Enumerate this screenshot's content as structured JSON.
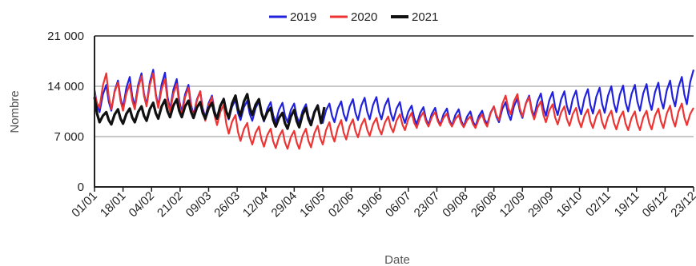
{
  "chart_data": {
    "type": "line",
    "title": "",
    "xlabel": "Date",
    "ylabel": "Nombre",
    "x_domain_days": [
      1,
      358
    ],
    "ylim": [
      0,
      21000
    ],
    "y_ticks": [
      {
        "value": 0,
        "label": "0"
      },
      {
        "value": 7000,
        "label": "7 000"
      },
      {
        "value": 14000,
        "label": "14 000"
      },
      {
        "value": 21000,
        "label": "21 000"
      }
    ],
    "gridlines": [
      7000,
      14000
    ],
    "x_ticks": [
      "01/01",
      "18/01",
      "04/02",
      "21/02",
      "09/03",
      "26/03",
      "12/04",
      "29/04",
      "16/05",
      "02/06",
      "19/06",
      "06/07",
      "23/07",
      "09/08",
      "26/08",
      "12/09",
      "29/09",
      "16/10",
      "02/11",
      "19/11",
      "06/12",
      "23/12"
    ],
    "x_tick_step_days": 17,
    "legend": {
      "placement": "top-center"
    },
    "series": [
      {
        "name": "2019",
        "color": "#2020dd",
        "weekly_peaks": [
          [
            1,
            13500
          ],
          [
            8,
            14200
          ],
          [
            15,
            14800
          ],
          [
            22,
            15300
          ],
          [
            29,
            15800
          ],
          [
            36,
            16300
          ],
          [
            43,
            15900
          ],
          [
            50,
            15000
          ],
          [
            57,
            14200
          ],
          [
            64,
            13300
          ],
          [
            71,
            12700
          ],
          [
            78,
            12300
          ],
          [
            85,
            12100
          ],
          [
            92,
            12000
          ],
          [
            99,
            11900
          ],
          [
            106,
            11800
          ],
          [
            113,
            11700
          ],
          [
            120,
            11600
          ],
          [
            127,
            11500
          ],
          [
            134,
            11400
          ],
          [
            141,
            11600
          ],
          [
            148,
            11900
          ],
          [
            155,
            12200
          ],
          [
            162,
            12400
          ],
          [
            169,
            12500
          ],
          [
            176,
            12300
          ],
          [
            183,
            11800
          ],
          [
            190,
            11300
          ],
          [
            197,
            11100
          ],
          [
            204,
            11000
          ],
          [
            211,
            10900
          ],
          [
            218,
            10800
          ],
          [
            225,
            10500
          ],
          [
            232,
            10600
          ],
          [
            239,
            11200
          ],
          [
            246,
            11800
          ],
          [
            253,
            12300
          ],
          [
            260,
            12700
          ],
          [
            267,
            13000
          ],
          [
            274,
            13200
          ],
          [
            281,
            13300
          ],
          [
            288,
            13400
          ],
          [
            295,
            13600
          ],
          [
            302,
            13800
          ],
          [
            309,
            14000
          ],
          [
            316,
            14100
          ],
          [
            323,
            14200
          ],
          [
            330,
            14300
          ],
          [
            337,
            14500
          ],
          [
            344,
            14800
          ],
          [
            351,
            15300
          ],
          [
            358,
            16300
          ]
        ],
        "weekly_troughs": [
          [
            4,
            10400
          ],
          [
            11,
            10600
          ],
          [
            18,
            11000
          ],
          [
            25,
            11200
          ],
          [
            32,
            11400
          ],
          [
            39,
            11200
          ],
          [
            46,
            10800
          ],
          [
            53,
            10400
          ],
          [
            60,
            10000
          ],
          [
            67,
            9700
          ],
          [
            74,
            9500
          ],
          [
            81,
            9400
          ],
          [
            88,
            9300
          ],
          [
            95,
            9200
          ],
          [
            102,
            9100
          ],
          [
            109,
            9000
          ],
          [
            116,
            9000
          ],
          [
            123,
            8900
          ],
          [
            130,
            8900
          ],
          [
            137,
            8900
          ],
          [
            144,
            9000
          ],
          [
            151,
            9200
          ],
          [
            158,
            9300
          ],
          [
            165,
            9400
          ],
          [
            172,
            9400
          ],
          [
            179,
            9200
          ],
          [
            186,
            8900
          ],
          [
            193,
            8700
          ],
          [
            200,
            8600
          ],
          [
            207,
            8600
          ],
          [
            214,
            8500
          ],
          [
            221,
            8400
          ],
          [
            228,
            8400
          ],
          [
            235,
            8700
          ],
          [
            242,
            9000
          ],
          [
            249,
            9300
          ],
          [
            256,
            9600
          ],
          [
            263,
            9800
          ],
          [
            270,
            9900
          ],
          [
            277,
            10000
          ],
          [
            284,
            10100
          ],
          [
            291,
            10100
          ],
          [
            298,
            10200
          ],
          [
            305,
            10300
          ],
          [
            312,
            10400
          ],
          [
            319,
            10500
          ],
          [
            326,
            10600
          ],
          [
            333,
            10700
          ],
          [
            340,
            10900
          ],
          [
            347,
            11200
          ],
          [
            354,
            11500
          ]
        ]
      },
      {
        "name": "2020",
        "color": "#ee3333",
        "weekly_peaks": [
          [
            1,
            13000
          ],
          [
            8,
            15800
          ],
          [
            15,
            14500
          ],
          [
            22,
            14300
          ],
          [
            29,
            15400
          ],
          [
            36,
            15800
          ],
          [
            43,
            15000
          ],
          [
            50,
            14300
          ],
          [
            57,
            13800
          ],
          [
            64,
            13300
          ],
          [
            71,
            12500
          ],
          [
            78,
            11400
          ],
          [
            85,
            10000
          ],
          [
            92,
            8900
          ],
          [
            99,
            8400
          ],
          [
            106,
            8100
          ],
          [
            113,
            7900
          ],
          [
            120,
            7800
          ],
          [
            127,
            8100
          ],
          [
            134,
            8500
          ],
          [
            141,
            9000
          ],
          [
            148,
            9300
          ],
          [
            155,
            9400
          ],
          [
            162,
            9500
          ],
          [
            169,
            9600
          ],
          [
            176,
            9800
          ],
          [
            183,
            10100
          ],
          [
            190,
            10300
          ],
          [
            197,
            10400
          ],
          [
            204,
            10400
          ],
          [
            211,
            10200
          ],
          [
            218,
            10000
          ],
          [
            225,
            9800
          ],
          [
            232,
            10100
          ],
          [
            239,
            11200
          ],
          [
            246,
            12700
          ],
          [
            253,
            12900
          ],
          [
            260,
            12500
          ],
          [
            267,
            11900
          ],
          [
            274,
            11500
          ],
          [
            281,
            11200
          ],
          [
            288,
            11000
          ],
          [
            295,
            10800
          ],
          [
            302,
            10700
          ],
          [
            309,
            10600
          ],
          [
            316,
            10500
          ],
          [
            323,
            10500
          ],
          [
            330,
            10600
          ],
          [
            337,
            10900
          ],
          [
            344,
            11300
          ],
          [
            351,
            11600
          ],
          [
            358,
            11000
          ]
        ],
        "weekly_troughs": [
          [
            4,
            11000
          ],
          [
            11,
            10800
          ],
          [
            18,
            10600
          ],
          [
            25,
            10800
          ],
          [
            32,
            11200
          ],
          [
            39,
            11000
          ],
          [
            46,
            10500
          ],
          [
            53,
            10000
          ],
          [
            60,
            9600
          ],
          [
            67,
            9200
          ],
          [
            74,
            8600
          ],
          [
            81,
            7400
          ],
          [
            88,
            6400
          ],
          [
            95,
            5900
          ],
          [
            102,
            5600
          ],
          [
            109,
            5400
          ],
          [
            116,
            5300
          ],
          [
            123,
            5300
          ],
          [
            130,
            5500
          ],
          [
            137,
            5900
          ],
          [
            144,
            6300
          ],
          [
            151,
            6600
          ],
          [
            158,
            6900
          ],
          [
            165,
            7100
          ],
          [
            172,
            7300
          ],
          [
            179,
            7600
          ],
          [
            186,
            7900
          ],
          [
            193,
            8200
          ],
          [
            200,
            8400
          ],
          [
            207,
            8500
          ],
          [
            214,
            8400
          ],
          [
            221,
            8300
          ],
          [
            228,
            8200
          ],
          [
            235,
            8400
          ],
          [
            242,
            9300
          ],
          [
            249,
            10100
          ],
          [
            256,
            9800
          ],
          [
            263,
            9400
          ],
          [
            270,
            9000
          ],
          [
            277,
            8700
          ],
          [
            284,
            8500
          ],
          [
            291,
            8300
          ],
          [
            298,
            8200
          ],
          [
            305,
            8100
          ],
          [
            312,
            8000
          ],
          [
            319,
            7900
          ],
          [
            326,
            7900
          ],
          [
            333,
            8000
          ],
          [
            340,
            8200
          ],
          [
            347,
            8400
          ],
          [
            354,
            8600
          ]
        ]
      },
      {
        "name": "2021",
        "color": "#111111",
        "weekly_peaks": [
          [
            1,
            12500
          ],
          [
            8,
            10400
          ],
          [
            15,
            10800
          ],
          [
            22,
            10900
          ],
          [
            29,
            11200
          ],
          [
            36,
            11700
          ],
          [
            43,
            12100
          ],
          [
            50,
            12200
          ],
          [
            57,
            12000
          ],
          [
            64,
            11800
          ],
          [
            71,
            11700
          ],
          [
            78,
            12200
          ],
          [
            85,
            12700
          ],
          [
            92,
            12900
          ],
          [
            99,
            12200
          ],
          [
            106,
            11000
          ],
          [
            113,
            10300
          ],
          [
            120,
            10700
          ],
          [
            127,
            11000
          ],
          [
            134,
            11300
          ],
          [
            138,
            11100
          ]
        ],
        "weekly_troughs": [
          [
            4,
            9000
          ],
          [
            11,
            8700
          ],
          [
            18,
            8800
          ],
          [
            25,
            9000
          ],
          [
            32,
            9200
          ],
          [
            39,
            9500
          ],
          [
            46,
            9700
          ],
          [
            53,
            9700
          ],
          [
            60,
            9600
          ],
          [
            67,
            9500
          ],
          [
            74,
            9500
          ],
          [
            81,
            9600
          ],
          [
            88,
            9900
          ],
          [
            95,
            10000
          ],
          [
            102,
            9300
          ],
          [
            109,
            8400
          ],
          [
            116,
            8100
          ],
          [
            123,
            8300
          ],
          [
            130,
            8600
          ],
          [
            136,
            8900
          ]
        ]
      }
    ]
  }
}
